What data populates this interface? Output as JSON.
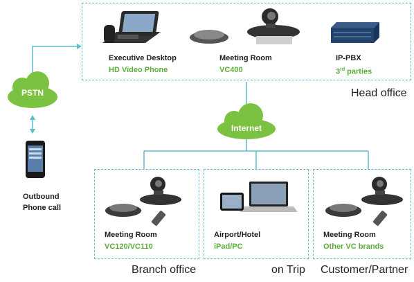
{
  "colors": {
    "dash": "#5bbcd0",
    "green": "#5cae3b",
    "cloud": "#7cc242",
    "text": "#222222"
  },
  "clouds": {
    "pstn": "PSTN",
    "internet": "Internet"
  },
  "head_office": {
    "region_label": "Head office",
    "devices": [
      {
        "title": "Executive Desktop",
        "subtitle": "HD Video Phone",
        "icon": "desk-phone-icon"
      },
      {
        "title": "Meeting Room",
        "subtitle": "VC400",
        "icon": "conference-system-icon"
      },
      {
        "title": "IP-PBX",
        "subtitle_main": "3",
        "subtitle_sup": "rd",
        "subtitle_rest": " parties",
        "icon": "pbx-server-icon"
      }
    ]
  },
  "mobile": {
    "line1": "Outbound",
    "line2": "Phone call",
    "icon": "smartphone-icon"
  },
  "branches": [
    {
      "title": "Meeting Room",
      "subtitle": "VC120/VC110",
      "region_label": "Branch office",
      "icon": "conference-system-icon"
    },
    {
      "title": "Airport/Hotel",
      "subtitle": "iPad/PC",
      "region_label": "on Trip",
      "icon": "tablet-laptop-icon"
    },
    {
      "title": "Meeting Room",
      "subtitle": "Other VC brands",
      "region_label": "Customer/Partner",
      "icon": "conference-system-icon"
    }
  ]
}
